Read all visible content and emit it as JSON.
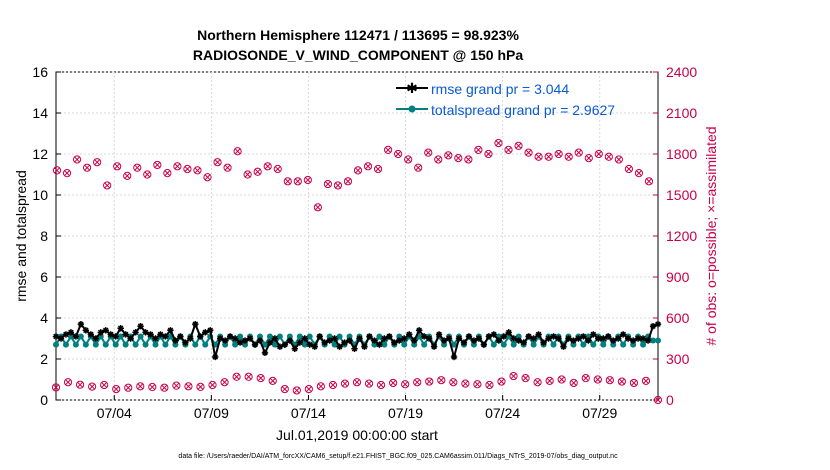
{
  "chart_data": {
    "type": "line",
    "title": "Northern Hemisphere 112471 / 113695 = 98.923%",
    "subtitle": "RADIOSONDE_V_WIND_COMPONENT @ 150 hPa",
    "xlabel": "Jul.01,2019 00:00:00 start",
    "ylabel": "rmse and totalspread",
    "ylabel_right": "# of obs: o=possible; ×=assimilated",
    "x_ticks": [
      "07/04",
      "07/09",
      "07/14",
      "07/19",
      "07/24",
      "07/29"
    ],
    "x_tick_days": [
      4,
      9,
      14,
      19,
      24,
      29
    ],
    "xlim": [
      1,
      32
    ],
    "ylim": [
      0,
      16
    ],
    "y_ticks": [
      "0",
      "2",
      "4",
      "6",
      "8",
      "10",
      "12",
      "14",
      "16"
    ],
    "ylim_right": [
      0,
      2400
    ],
    "y_ticks_right": [
      "0",
      "300",
      "600",
      "900",
      "1200",
      "1500",
      "1800",
      "2100",
      "2400"
    ],
    "legend": [
      "rmse grand pr = 3.044",
      "totalspread grand pr = 2.9627"
    ],
    "footer": "data file: /Users/raeder/DAI/ATM_forcXX/CAM6_setup/f.e21.FHIST_BGC.f09_025.CAM6assim.011/Diags_NTrS_2019-07/obs_diag_output.nc",
    "series": [
      {
        "name": "rmse",
        "color": "#000000",
        "values_12h": [
          3.1,
          3.0,
          3.2,
          3.3,
          3.1,
          3.7,
          3.4,
          3.2,
          3.0,
          3.3,
          3.4,
          3.2,
          3.1,
          3.5,
          3.2,
          3.0,
          3.3,
          3.6,
          3.3,
          3.2,
          3.0,
          3.2,
          3.1,
          3.4,
          2.9,
          3.1,
          2.8,
          3.0,
          3.7,
          3.1,
          3.3,
          3.4,
          2.1,
          3.0,
          2.9,
          3.1,
          3.0,
          2.8,
          2.9,
          3.0,
          2.7,
          2.9,
          2.3,
          2.8,
          3.0,
          2.6,
          2.7,
          2.9,
          2.5,
          2.8,
          3.0,
          2.7,
          2.6,
          3.1,
          2.8,
          2.9,
          3.0,
          2.6,
          2.8,
          2.9,
          2.5,
          3.0,
          2.6,
          3.1,
          2.9,
          2.7,
          3.0,
          3.1,
          2.8,
          2.9,
          3.0,
          3.2,
          2.9,
          3.4,
          3.1,
          3.0,
          2.6,
          3.2,
          2.9,
          3.0,
          2.1,
          3.0,
          2.8,
          3.1,
          2.9,
          3.0,
          2.7,
          3.1,
          3.2,
          2.9,
          3.1,
          3.3,
          3.0,
          2.9,
          2.8,
          3.1,
          3.0,
          3.2,
          2.8,
          3.0,
          3.1,
          3.0,
          2.6,
          3.0,
          2.9,
          3.0,
          3.1,
          2.9,
          3.2,
          3.0,
          3.0,
          3.1,
          2.9,
          3.0,
          3.2,
          3.0,
          2.9,
          3.0,
          3.0,
          2.9,
          3.6,
          3.7
        ]
      },
      {
        "name": "totalspread",
        "color": "#00807f",
        "values_12h": [
          2.7,
          3.1,
          2.7,
          3.1,
          2.7,
          3.1,
          2.7,
          3.1,
          2.7,
          3.1,
          2.7,
          3.1,
          2.7,
          3.1,
          2.7,
          3.1,
          2.7,
          3.1,
          2.7,
          3.1,
          2.7,
          3.1,
          2.7,
          3.1,
          2.7,
          3.1,
          2.7,
          3.1,
          2.7,
          3.1,
          2.7,
          3.1,
          2.7,
          3.1,
          2.7,
          3.1,
          2.7,
          3.1,
          2.7,
          3.1,
          2.7,
          3.1,
          2.7,
          3.1,
          2.7,
          3.1,
          2.7,
          3.1,
          2.7,
          3.1,
          2.7,
          3.1,
          2.7,
          3.1,
          2.7,
          3.1,
          2.7,
          3.1,
          2.7,
          3.1,
          2.7,
          3.1,
          2.7,
          3.1,
          2.7,
          3.1,
          2.7,
          3.1,
          2.7,
          3.1,
          2.7,
          3.1,
          2.7,
          3.1,
          2.7,
          3.1,
          2.7,
          3.1,
          2.7,
          3.1,
          2.7,
          3.1,
          2.7,
          3.1,
          2.7,
          3.1,
          2.7,
          3.1,
          2.7,
          3.1,
          2.7,
          3.1,
          2.7,
          3.1,
          2.7,
          3.1,
          2.7,
          3.1,
          2.7,
          3.1,
          2.7,
          3.1,
          2.7,
          3.1,
          2.7,
          3.1,
          2.7,
          3.1,
          2.7,
          3.1,
          2.7,
          3.1,
          2.7,
          3.1,
          2.7,
          3.1,
          2.7,
          3.1,
          2.7,
          3.1,
          2.9,
          2.9
        ]
      },
      {
        "name": "obs possible (00Z)",
        "color": "#c8004a",
        "values": [
          1680,
          1660,
          1760,
          1700,
          1740,
          1570,
          1710,
          1640,
          1700,
          1650,
          1720,
          1660,
          1710,
          1690,
          1680,
          1630,
          1740,
          1700,
          1820,
          1650,
          1670,
          1710,
          1690,
          1600,
          1600,
          1610,
          1410,
          1580,
          1570,
          1600,
          1680,
          1710,
          1690,
          1830,
          1800,
          1760,
          1700,
          1810,
          1760,
          1790,
          1770,
          1760,
          1830,
          1800,
          1880,
          1830,
          1860,
          1810,
          1780,
          1780,
          1800,
          1780,
          1810,
          1770,
          1800,
          1780,
          1760,
          1690,
          1660,
          1600
        ]
      },
      {
        "name": "obs possible (12Z)",
        "color": "#c8004a",
        "values": [
          92,
          130,
          112,
          98,
          110,
          80,
          90,
          100,
          95,
          90,
          105,
          100,
          96,
          110,
          130,
          170,
          170,
          160,
          140,
          80,
          70,
          80,
          100,
          110,
          120,
          130,
          120,
          110,
          125,
          115,
          130,
          135,
          145,
          130,
          120,
          115,
          110,
          135,
          175,
          160,
          130,
          140,
          150,
          125,
          160,
          150,
          145,
          135,
          125,
          140,
          0
        ]
      }
    ]
  }
}
